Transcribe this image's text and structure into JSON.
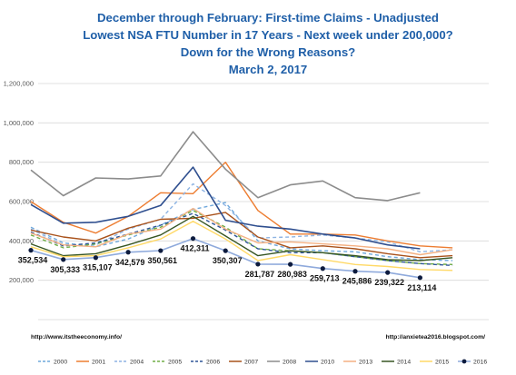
{
  "chart_data": {
    "type": "line",
    "title_lines": [
      "December through February: First-time Claims - Unadjusted",
      "Lowest NSA FTU Number in 17 Years - Next week under 200,000?",
      "Down for the Wrong Reasons?",
      "March 2, 2017"
    ],
    "ylim": [
      0,
      1200000
    ],
    "yticks": [
      0,
      200000,
      400000,
      600000,
      800000,
      1000000,
      1200000
    ],
    "ytick_labels": [
      "",
      "200,000",
      "400,000",
      "600,000",
      "800,000",
      "1,000,000",
      "1,200,000"
    ],
    "grid": true,
    "legend_position": "bottom",
    "x": [
      0,
      1,
      2,
      3,
      4,
      5,
      6,
      7,
      8,
      9,
      10,
      11,
      12,
      13
    ],
    "series": [
      {
        "name": "2000",
        "color": "#6fa8dc",
        "dash": "4,3",
        "width": 1.4,
        "values": [
          470000,
          390000,
          370000,
          410000,
          480000,
          560000,
          595000,
          400000,
          360000,
          350000,
          345000,
          320000,
          305000,
          300000
        ]
      },
      {
        "name": "2001",
        "color": "#ed7d31",
        "dash": "",
        "width": 1.4,
        "values": [
          600000,
          495000,
          440000,
          525000,
          645000,
          640000,
          800000,
          555000,
          435000,
          435000,
          430000,
          400000,
          375000,
          365000
        ]
      },
      {
        "name": "2004",
        "color": "#8eb4e3",
        "dash": "4,3",
        "width": 1.4,
        "values": [
          460000,
          380000,
          380000,
          460000,
          510000,
          690000,
          580000,
          415000,
          420000,
          430000,
          415000,
          395000,
          345000,
          355000
        ]
      },
      {
        "name": "2005",
        "color": "#70ad47",
        "dash": "4,3",
        "width": 1.4,
        "values": [
          430000,
          365000,
          385000,
          430000,
          470000,
          555000,
          470000,
          360000,
          350000,
          340000,
          320000,
          300000,
          285000,
          280000
        ]
      },
      {
        "name": "2006",
        "color": "#2e5597",
        "dash": "4,3",
        "width": 1.4,
        "values": [
          445000,
          375000,
          390000,
          435000,
          480000,
          540000,
          455000,
          360000,
          340000,
          340000,
          320000,
          300000,
          285000,
          275000
        ]
      },
      {
        "name": "2007",
        "color": "#a9521b",
        "dash": "",
        "width": 1.4,
        "values": [
          455000,
          420000,
          400000,
          465000,
          510000,
          515000,
          545000,
          420000,
          365000,
          375000,
          360000,
          335000,
          315000,
          325000
        ]
      },
      {
        "name": "2008",
        "color": "#8c8c8c",
        "dash": "",
        "width": 1.6,
        "values": [
          760000,
          630000,
          720000,
          715000,
          730000,
          955000,
          765000,
          620000,
          685000,
          705000,
          620000,
          605000,
          645000,
          null
        ]
      },
      {
        "name": "2010",
        "color": "#2f4f8f",
        "dash": "",
        "width": 1.6,
        "values": [
          585000,
          490000,
          495000,
          525000,
          580000,
          775000,
          505000,
          475000,
          460000,
          435000,
          415000,
          380000,
          360000,
          null
        ]
      },
      {
        "name": "2013",
        "color": "#f4b183",
        "dash": "",
        "width": 1.4,
        "values": [
          440000,
          380000,
          370000,
          435000,
          460000,
          565000,
          460000,
          390000,
          395000,
          385000,
          375000,
          360000,
          330000,
          355000
        ]
      },
      {
        "name": "2014",
        "color": "#375623",
        "dash": "",
        "width": 1.4,
        "values": [
          385000,
          325000,
          335000,
          380000,
          430000,
          525000,
          425000,
          325000,
          350000,
          340000,
          325000,
          305000,
          300000,
          315000
        ]
      },
      {
        "name": "2015",
        "color": "#ffd966",
        "dash": "",
        "width": 1.4,
        "values": [
          370000,
          320000,
          325000,
          365000,
          410000,
          500000,
          410000,
          300000,
          330000,
          305000,
          280000,
          270000,
          255000,
          250000
        ]
      },
      {
        "name": "2016",
        "color": "#8faadc",
        "dash": "",
        "width": 1.6,
        "marker": true,
        "values": [
          352534,
          305333,
          315107,
          342579,
          350561,
          412311,
          350307,
          281787,
          280983,
          259713,
          245886,
          239322,
          213114,
          null
        ]
      }
    ],
    "annotations": [
      {
        "text": "352,534",
        "xi": 0,
        "value": 352534,
        "pos": "below"
      },
      {
        "text": "305,333",
        "xi": 1,
        "value": 305333,
        "pos": "below"
      },
      {
        "text": "315,107",
        "xi": 2,
        "value": 315107,
        "pos": "below"
      },
      {
        "text": "342,579",
        "xi": 3,
        "value": 342579,
        "pos": "below"
      },
      {
        "text": "350,561",
        "xi": 4,
        "value": 350561,
        "pos": "below"
      },
      {
        "text": "412,311",
        "xi": 5,
        "value": 412311,
        "pos": "below"
      },
      {
        "text": "350,307",
        "xi": 6,
        "value": 350307,
        "pos": "below"
      },
      {
        "text": "281,787",
        "xi": 7,
        "value": 281787,
        "pos": "below"
      },
      {
        "text": "280,983",
        "xi": 8,
        "value": 280983,
        "pos": "below"
      },
      {
        "text": "259,713",
        "xi": 9,
        "value": 259713,
        "pos": "below"
      },
      {
        "text": "245,886",
        "xi": 10,
        "value": 245886,
        "pos": "below"
      },
      {
        "text": "239,322",
        "xi": 11,
        "value": 239322,
        "pos": "below"
      },
      {
        "text": "213,114",
        "xi": 12,
        "value": 213114,
        "pos": "below"
      }
    ],
    "sources": [
      "http://www.itstheeconomy.info/",
      "http://anxietea2016.blogspot.com/"
    ]
  }
}
